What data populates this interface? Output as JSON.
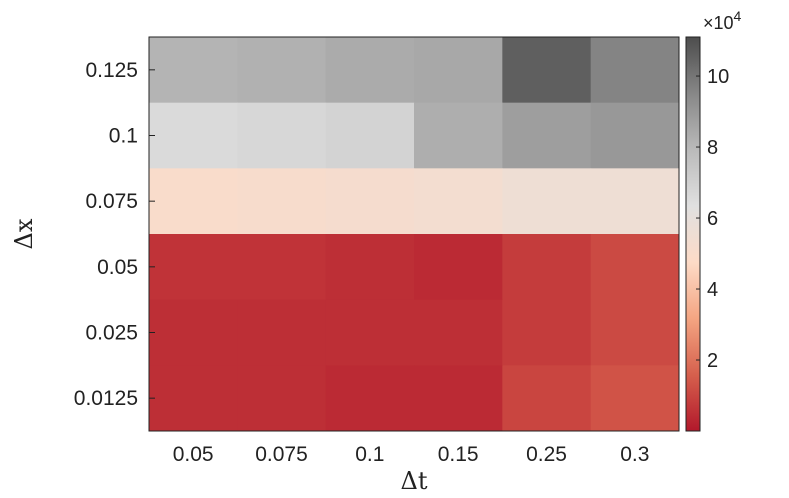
{
  "chart_data": {
    "type": "heatmap",
    "title": "",
    "xlabel": "Δt",
    "ylabel": "Δx",
    "x_categories": [
      "0.05",
      "0.075",
      "0.1",
      "0.15",
      "0.25",
      "0.3"
    ],
    "y_categories": [
      "0.125",
      "0.1",
      "0.075",
      "0.05",
      "0.025",
      "0.0125"
    ],
    "values": [
      [
        81000,
        82000,
        84000,
        85000,
        106000,
        96000
      ],
      [
        66000,
        67000,
        69000,
        83000,
        88000,
        90000
      ],
      [
        50000,
        51000,
        52000,
        53000,
        56000,
        56000
      ],
      [
        6000,
        6000,
        5000,
        4000,
        8000,
        11000
      ],
      [
        5000,
        5000,
        5000,
        5000,
        8000,
        11000
      ],
      [
        5000,
        5000,
        4000,
        4000,
        10000,
        13000
      ]
    ],
    "colorbar": {
      "range": [
        0,
        111000
      ],
      "ticks": [
        2,
        4,
        6,
        8,
        10
      ],
      "exponent_label": "×10",
      "exponent_power": "4",
      "scale_multiplier": 10000,
      "colormap": [
        "#b2182b",
        "#d6604d",
        "#f4a582",
        "#fddbc7",
        "#e0e0e0",
        "#bababa",
        "#878787",
        "#4d4d4d"
      ]
    }
  }
}
